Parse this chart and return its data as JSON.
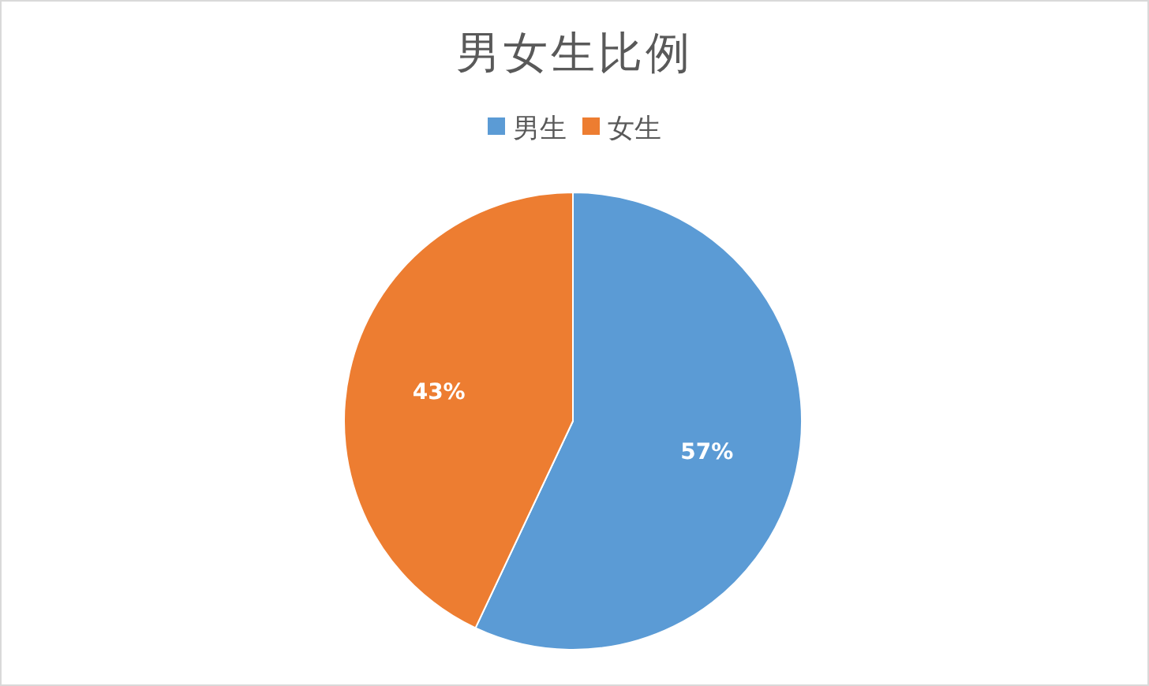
{
  "chart_data": {
    "type": "pie",
    "title": "男女生比例",
    "categories": [
      "男生",
      "女生"
    ],
    "values": [
      57,
      43
    ],
    "colors": [
      "#5b9bd5",
      "#ed7d31"
    ],
    "value_labels": [
      "57%",
      "43%"
    ],
    "legend": "top"
  }
}
